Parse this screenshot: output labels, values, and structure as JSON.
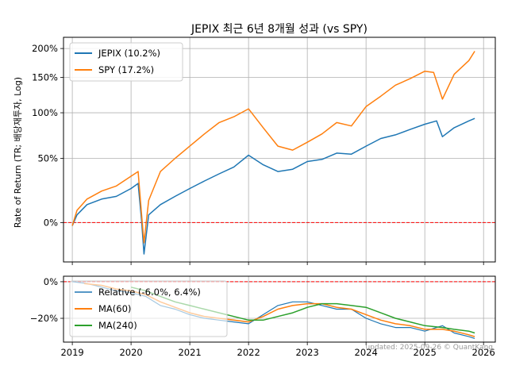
{
  "chart_data": [
    {
      "type": "line",
      "title": "JEPIX 최근 6년 8개월 성과 (vs SPY)",
      "ylabel": "Rate of Return (TR; 배당재투자, Log)",
      "xlim": [
        2018.85,
        2026.2
      ],
      "ylim": [
        -0.22,
        2.22
      ],
      "y_scale": "log(1+r)",
      "y_ticks": [
        0,
        0.5,
        1.0,
        1.5,
        2.0
      ],
      "y_tick_labels": [
        "0%",
        "50%",
        "100%",
        "150%",
        "200%"
      ],
      "grid": true,
      "legend_position": "top-left",
      "reference_line": {
        "y": 0,
        "color": "#ff0000",
        "style": "dashed"
      },
      "series": [
        {
          "name": "JEPIX (10.2%)",
          "color": "#1f77b4",
          "points": [
            [
              2019.0,
              -0.02
            ],
            [
              2019.08,
              0.05
            ],
            [
              2019.25,
              0.12
            ],
            [
              2019.5,
              0.16
            ],
            [
              2019.75,
              0.18
            ],
            [
              2020.0,
              0.24
            ],
            [
              2020.12,
              0.28
            ],
            [
              2020.18,
              0.01
            ],
            [
              2020.22,
              -0.18
            ],
            [
              2020.3,
              0.05
            ],
            [
              2020.5,
              0.12
            ],
            [
              2020.75,
              0.18
            ],
            [
              2021.0,
              0.24
            ],
            [
              2021.25,
              0.3
            ],
            [
              2021.5,
              0.36
            ],
            [
              2021.75,
              0.42
            ],
            [
              2022.0,
              0.53
            ],
            [
              2022.25,
              0.44
            ],
            [
              2022.5,
              0.38
            ],
            [
              2022.75,
              0.4
            ],
            [
              2023.0,
              0.47
            ],
            [
              2023.25,
              0.49
            ],
            [
              2023.5,
              0.55
            ],
            [
              2023.75,
              0.54
            ],
            [
              2024.0,
              0.62
            ],
            [
              2024.25,
              0.7
            ],
            [
              2024.5,
              0.74
            ],
            [
              2024.75,
              0.8
            ],
            [
              2025.0,
              0.86
            ],
            [
              2025.2,
              0.9
            ],
            [
              2025.3,
              0.72
            ],
            [
              2025.5,
              0.82
            ],
            [
              2025.75,
              0.9
            ],
            [
              2025.85,
              0.93
            ]
          ]
        },
        {
          "name": "SPY (17.2%)",
          "color": "#ff7f0e",
          "points": [
            [
              2019.0,
              -0.02
            ],
            [
              2019.08,
              0.08
            ],
            [
              2019.25,
              0.16
            ],
            [
              2019.5,
              0.22
            ],
            [
              2019.75,
              0.26
            ],
            [
              2020.0,
              0.34
            ],
            [
              2020.12,
              0.38
            ],
            [
              2020.18,
              0.05
            ],
            [
              2020.22,
              -0.12
            ],
            [
              2020.3,
              0.15
            ],
            [
              2020.5,
              0.38
            ],
            [
              2020.75,
              0.5
            ],
            [
              2021.0,
              0.62
            ],
            [
              2021.25,
              0.75
            ],
            [
              2021.5,
              0.88
            ],
            [
              2021.75,
              0.95
            ],
            [
              2022.0,
              1.05
            ],
            [
              2022.25,
              0.82
            ],
            [
              2022.5,
              0.62
            ],
            [
              2022.75,
              0.58
            ],
            [
              2023.0,
              0.66
            ],
            [
              2023.25,
              0.75
            ],
            [
              2023.5,
              0.88
            ],
            [
              2023.75,
              0.84
            ],
            [
              2024.0,
              1.08
            ],
            [
              2024.25,
              1.22
            ],
            [
              2024.5,
              1.38
            ],
            [
              2024.75,
              1.48
            ],
            [
              2025.0,
              1.6
            ],
            [
              2025.15,
              1.58
            ],
            [
              2025.3,
              1.18
            ],
            [
              2025.5,
              1.55
            ],
            [
              2025.75,
              1.78
            ],
            [
              2025.85,
              1.95
            ]
          ]
        }
      ]
    },
    {
      "type": "line",
      "xlim": [
        2018.85,
        2026.2
      ],
      "ylim": [
        -0.33,
        0.03
      ],
      "y_ticks": [
        0,
        -0.2
      ],
      "y_tick_labels": [
        "0%",
        "−20%"
      ],
      "x_ticks": [
        2019,
        2020,
        2021,
        2022,
        2023,
        2024,
        2025,
        2026
      ],
      "x_tick_labels": [
        "2019",
        "2020",
        "2021",
        "2022",
        "2023",
        "2024",
        "2025",
        "2026"
      ],
      "grid": true,
      "legend_position": "top-left",
      "reference_line": {
        "y": 0,
        "color": "#ff0000",
        "style": "dashed"
      },
      "annotation": "updated: 2025-09-26 © QuantKang",
      "series": [
        {
          "name": "Relative (-6.0%, 6.4%)",
          "color": "#1f77b4",
          "points": [
            [
              2019.0,
              0.0
            ],
            [
              2019.25,
              -0.01
            ],
            [
              2019.5,
              -0.03
            ],
            [
              2019.75,
              -0.05
            ],
            [
              2020.0,
              -0.06
            ],
            [
              2020.25,
              -0.08
            ],
            [
              2020.5,
              -0.13
            ],
            [
              2020.75,
              -0.15
            ],
            [
              2021.0,
              -0.18
            ],
            [
              2021.25,
              -0.2
            ],
            [
              2021.5,
              -0.21
            ],
            [
              2021.75,
              -0.22
            ],
            [
              2022.0,
              -0.23
            ],
            [
              2022.25,
              -0.18
            ],
            [
              2022.5,
              -0.13
            ],
            [
              2022.75,
              -0.11
            ],
            [
              2023.0,
              -0.11
            ],
            [
              2023.25,
              -0.13
            ],
            [
              2023.5,
              -0.15
            ],
            [
              2023.75,
              -0.15
            ],
            [
              2024.0,
              -0.2
            ],
            [
              2024.25,
              -0.23
            ],
            [
              2024.5,
              -0.25
            ],
            [
              2024.75,
              -0.25
            ],
            [
              2025.0,
              -0.27
            ],
            [
              2025.3,
              -0.24
            ],
            [
              2025.5,
              -0.28
            ],
            [
              2025.75,
              -0.3
            ],
            [
              2025.85,
              -0.31
            ]
          ]
        },
        {
          "name": "MA(60)",
          "color": "#ff7f0e",
          "points": [
            [
              2019.2,
              -0.01
            ],
            [
              2019.5,
              -0.02
            ],
            [
              2019.75,
              -0.04
            ],
            [
              2020.0,
              -0.05
            ],
            [
              2020.25,
              -0.07
            ],
            [
              2020.5,
              -0.11
            ],
            [
              2020.75,
              -0.14
            ],
            [
              2021.0,
              -0.17
            ],
            [
              2021.25,
              -0.19
            ],
            [
              2021.5,
              -0.2
            ],
            [
              2021.75,
              -0.21
            ],
            [
              2022.0,
              -0.22
            ],
            [
              2022.25,
              -0.19
            ],
            [
              2022.5,
              -0.15
            ],
            [
              2022.75,
              -0.13
            ],
            [
              2023.0,
              -0.12
            ],
            [
              2023.25,
              -0.12
            ],
            [
              2023.5,
              -0.14
            ],
            [
              2023.75,
              -0.15
            ],
            [
              2024.0,
              -0.18
            ],
            [
              2024.25,
              -0.21
            ],
            [
              2024.5,
              -0.23
            ],
            [
              2024.75,
              -0.24
            ],
            [
              2025.0,
              -0.26
            ],
            [
              2025.3,
              -0.26
            ],
            [
              2025.5,
              -0.27
            ],
            [
              2025.75,
              -0.29
            ],
            [
              2025.85,
              -0.3
            ]
          ]
        },
        {
          "name": "MA(240)",
          "color": "#2ca02c",
          "points": [
            [
              2020.0,
              -0.03
            ],
            [
              2020.25,
              -0.05
            ],
            [
              2020.5,
              -0.08
            ],
            [
              2020.75,
              -0.11
            ],
            [
              2021.0,
              -0.13
            ],
            [
              2021.25,
              -0.15
            ],
            [
              2021.5,
              -0.17
            ],
            [
              2021.75,
              -0.19
            ],
            [
              2022.0,
              -0.21
            ],
            [
              2022.25,
              -0.21
            ],
            [
              2022.5,
              -0.19
            ],
            [
              2022.75,
              -0.17
            ],
            [
              2023.0,
              -0.14
            ],
            [
              2023.25,
              -0.12
            ],
            [
              2023.5,
              -0.12
            ],
            [
              2023.75,
              -0.13
            ],
            [
              2024.0,
              -0.14
            ],
            [
              2024.25,
              -0.17
            ],
            [
              2024.5,
              -0.2
            ],
            [
              2024.75,
              -0.22
            ],
            [
              2025.0,
              -0.24
            ],
            [
              2025.3,
              -0.25
            ],
            [
              2025.5,
              -0.26
            ],
            [
              2025.75,
              -0.27
            ],
            [
              2025.85,
              -0.28
            ]
          ]
        }
      ]
    }
  ]
}
